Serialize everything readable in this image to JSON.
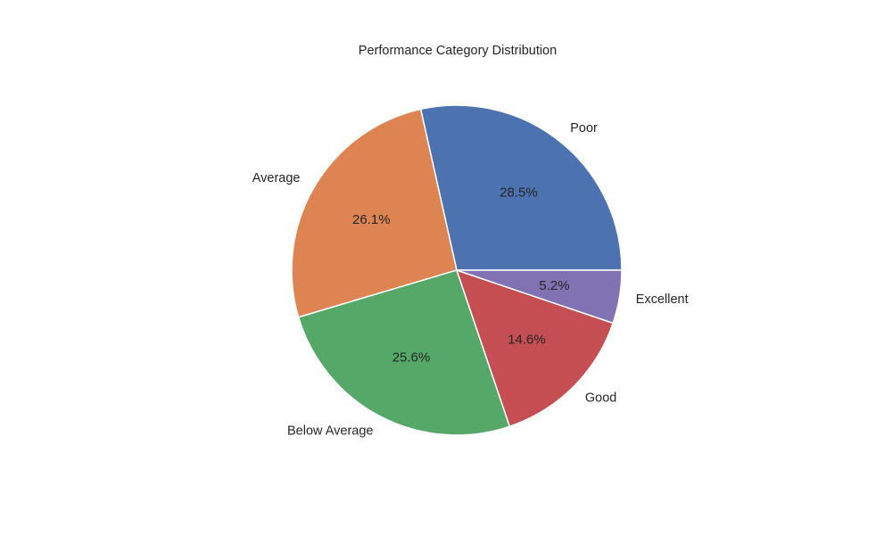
{
  "chart_data": {
    "type": "pie",
    "title": "Performance Category Distribution",
    "start_angle_deg": 0,
    "direction": "counterclockwise",
    "slices": [
      {
        "label": "Poor",
        "value": 28.5,
        "pct_label": "28.5%",
        "color": "#4c72b0"
      },
      {
        "label": "Average",
        "value": 26.1,
        "pct_label": "26.1%",
        "color": "#dd8452"
      },
      {
        "label": "Below Average",
        "value": 25.6,
        "pct_label": "25.6%",
        "color": "#55a868"
      },
      {
        "label": "Good",
        "value": 14.6,
        "pct_label": "14.6%",
        "color": "#c44e52"
      },
      {
        "label": "Excellent",
        "value": 5.2,
        "pct_label": "5.2%",
        "color": "#8172b3"
      }
    ]
  }
}
